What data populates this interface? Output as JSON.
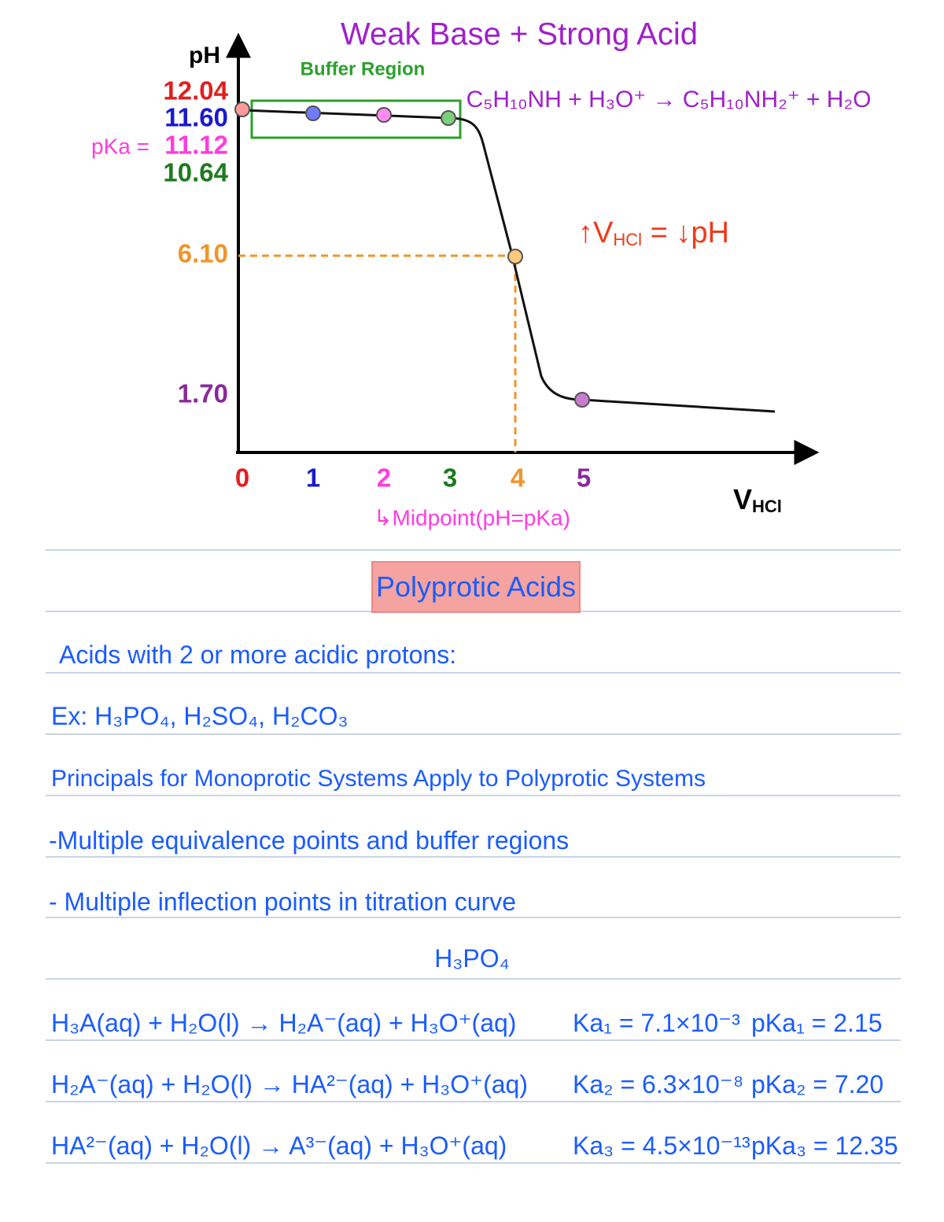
{
  "chart": {
    "title": "Weak Base + Strong Acid",
    "reaction": "C₅H₁₀NH + H₃O⁺ → C₅H₁₀NH₂⁺ + H₂O",
    "buffer_label": "Buffer Region",
    "y_axis_label": "pH",
    "y_tick_labels": [
      "12.04",
      "11.60",
      "11.12",
      "10.64",
      "6.10",
      "1.70"
    ],
    "pka_label": "pKa =",
    "x_tick_labels": [
      "0",
      "1",
      "2",
      "3",
      "4",
      "5"
    ],
    "midpoint_note": "↳Midpoint(pH=pKa)",
    "x_axis_label": {
      "main": "V",
      "sub": "HCl"
    },
    "slope_note": {
      "pre": "↑V",
      "sub": "HCl",
      "post": " = ↓pH"
    }
  },
  "notes": {
    "heading": "Polyprotic Acids",
    "lines": [
      "Acids with 2 or more acidic protons:",
      "Ex: H₃PO₄, H₂SO₄, H₂CO₃",
      "Principals for Monoprotic Systems Apply to Polyprotic Systems",
      "-Multiple equivalence points and buffer regions",
      "- Multiple inflection points in titration curve"
    ],
    "formula": "H₃PO₄",
    "reactions": [
      {
        "equation": "H₃A(aq) + H₂O(l) → H₂A⁻(aq) + H₃O⁺(aq)",
        "ka": "Ka₁ = 7.1×10⁻³",
        "pka": "pKa₁ = 2.15"
      },
      {
        "equation": "H₂A⁻(aq) + H₂O(l) → HA²⁻(aq) + H₃O⁺(aq)",
        "ka": "Ka₂ = 6.3×10⁻⁸",
        "pka": "pKa₂ = 7.20"
      },
      {
        "equation": "HA²⁻(aq) + H₂O(l) → A³⁻(aq) + H₃O⁺(aq)",
        "ka": "Ka₃ = 4.5×10⁻¹³",
        "pka": "pKa₃ = 12.35"
      }
    ]
  }
}
